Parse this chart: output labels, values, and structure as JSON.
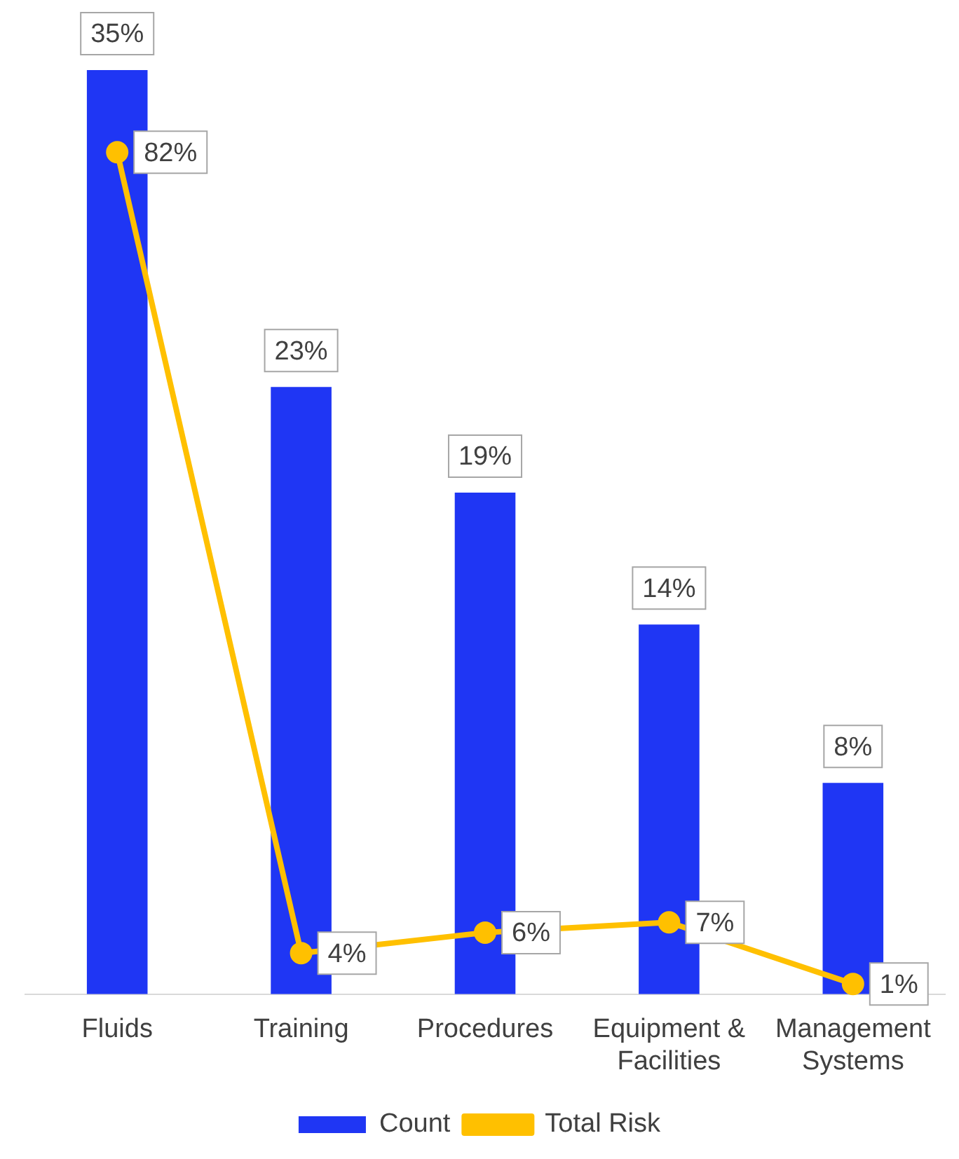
{
  "chart_data": {
    "type": "bar",
    "categories": [
      "Fluids",
      "Training",
      "Procedures",
      "Equipment & Facilities",
      "Management Systems"
    ],
    "series": [
      {
        "name": "Count",
        "color": "#1f36f4",
        "values": [
          35,
          23,
          19,
          14,
          8
        ],
        "value_labels": [
          "35%",
          "23%",
          "19%",
          "14%",
          "8%"
        ]
      },
      {
        "name": "Total Risk",
        "type": "line",
        "axis": "y2",
        "color": "#ffc000",
        "values": [
          82,
          4,
          6,
          7,
          1
        ],
        "value_labels": [
          "82%",
          "4%",
          "6%",
          "7%",
          "1%"
        ],
        "marker": "circle"
      }
    ],
    "tick_labels": "x",
    "grid": false,
    "legend": "bottom"
  }
}
